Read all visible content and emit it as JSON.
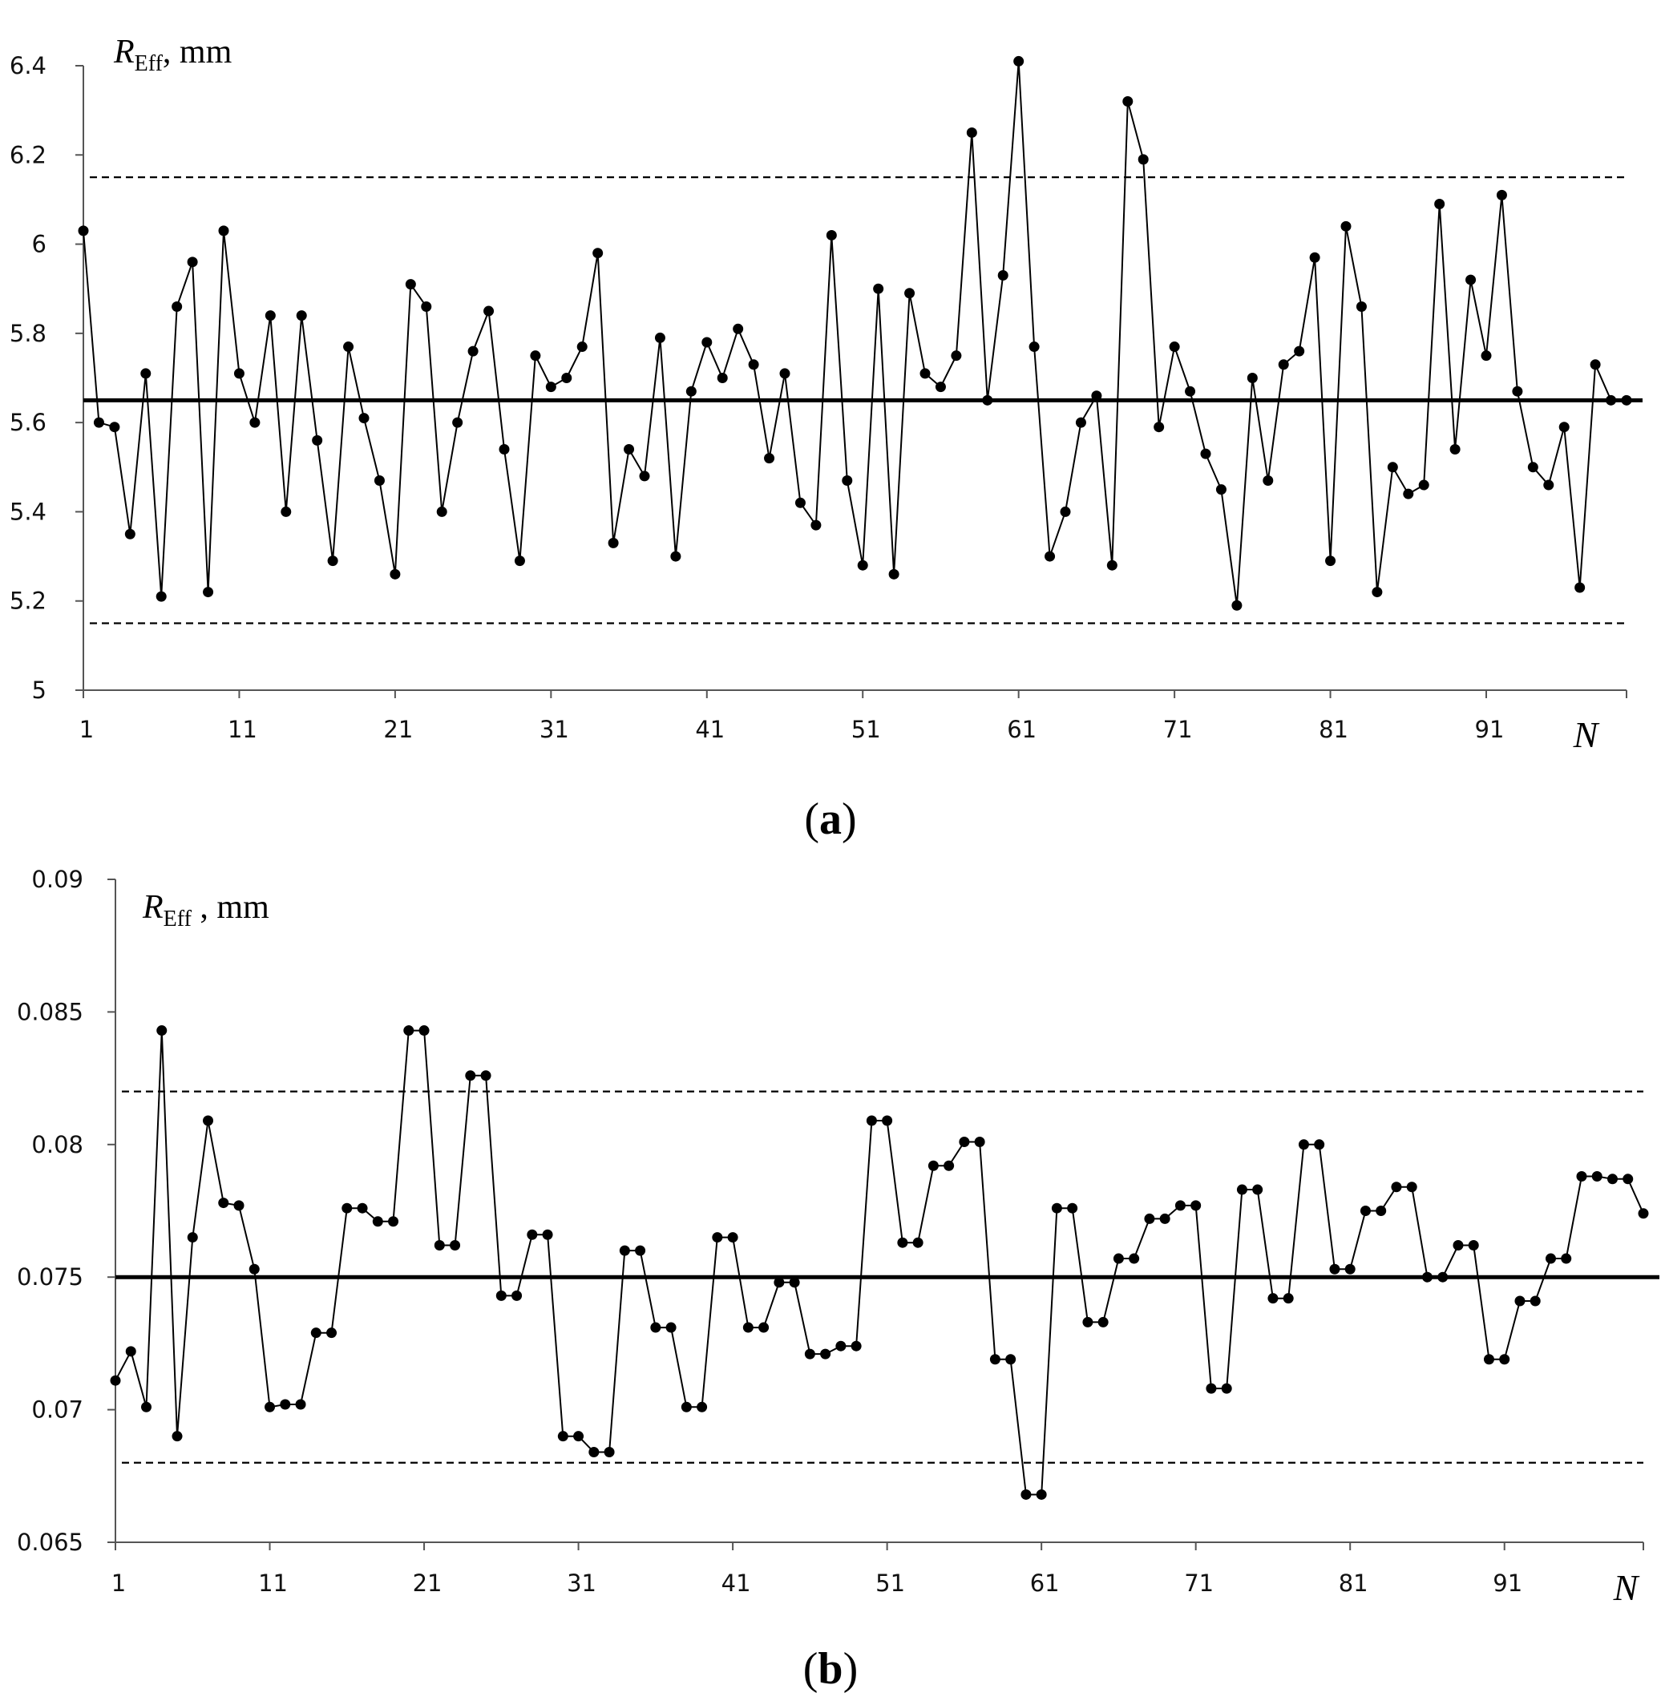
{
  "chart_data": [
    {
      "type": "line",
      "panel_label": "a",
      "ylabel_main": "R",
      "ylabel_sub": "Eff",
      "ylabel_unit": ", mm",
      "xlabel": "N",
      "ylim": [
        5,
        6.4
      ],
      "yticks": [
        5,
        5.2,
        5.4,
        5.6,
        5.8,
        6,
        6.2,
        6.4
      ],
      "ytick_labels": [
        "5",
        "5.2",
        "5.4",
        "5.6",
        "5.8",
        "6",
        "6.2",
        "6.4"
      ],
      "xlim": [
        1,
        100
      ],
      "xticks": [
        1,
        11,
        21,
        31,
        41,
        51,
        61,
        71,
        81,
        91
      ],
      "xtick_labels": [
        "1",
        "11",
        "21",
        "31",
        "41",
        "51",
        "61",
        "71",
        "81",
        "91"
      ],
      "mean_line": 5.65,
      "upper_limit": 6.15,
      "lower_limit": 5.15,
      "x": [
        1,
        2,
        3,
        4,
        5,
        6,
        7,
        8,
        9,
        10,
        11,
        12,
        13,
        14,
        15,
        16,
        17,
        18,
        19,
        20,
        21,
        22,
        23,
        24,
        25,
        26,
        27,
        28,
        29,
        30,
        31,
        32,
        33,
        34,
        35,
        36,
        37,
        38,
        39,
        40,
        41,
        42,
        43,
        44,
        45,
        46,
        47,
        48,
        49,
        50,
        51,
        52,
        53,
        54,
        55,
        56,
        57,
        58,
        59,
        60,
        61,
        62,
        63,
        64,
        65,
        66,
        67,
        68,
        69,
        70,
        71,
        72,
        73,
        74,
        75,
        76,
        77,
        78,
        79,
        80,
        81,
        82,
        83,
        84,
        85,
        86,
        87,
        88,
        89,
        90,
        91,
        92,
        93,
        94,
        95,
        96,
        97,
        98,
        99,
        100
      ],
      "values": [
        6.03,
        5.6,
        5.59,
        5.35,
        5.71,
        5.21,
        5.86,
        5.96,
        5.22,
        6.03,
        5.71,
        5.6,
        5.84,
        5.4,
        5.84,
        5.56,
        5.29,
        5.77,
        5.61,
        5.47,
        5.26,
        5.91,
        5.86,
        5.4,
        5.6,
        5.76,
        5.85,
        5.54,
        5.29,
        5.75,
        5.68,
        5.7,
        5.77,
        5.98,
        5.33,
        5.54,
        5.48,
        5.79,
        5.3,
        5.67,
        5.78,
        5.7,
        5.81,
        5.73,
        5.52,
        5.71,
        5.42,
        5.37,
        6.02,
        5.47,
        5.28,
        5.9,
        5.26,
        5.89,
        5.71,
        5.68,
        5.75,
        6.25,
        5.65,
        5.93,
        6.41,
        5.77,
        5.3,
        5.4,
        5.6,
        5.66,
        5.28,
        6.32,
        6.19,
        5.59,
        5.77,
        5.67,
        5.53,
        5.45,
        5.19,
        5.7,
        5.47,
        5.73,
        5.76,
        5.97,
        5.29,
        6.04,
        5.86,
        5.22,
        5.5,
        5.44,
        5.46,
        6.09,
        5.54,
        5.92,
        5.75,
        6.11,
        5.67,
        5.5,
        5.46,
        5.59,
        5.23,
        5.73,
        5.65,
        5.65
      ]
    },
    {
      "type": "line",
      "panel_label": "b",
      "ylabel_main": "R",
      "ylabel_sub": "Eff",
      "ylabel_unit": " , mm",
      "xlabel": "N",
      "ylim": [
        0.065,
        0.09
      ],
      "yticks": [
        0.065,
        0.07,
        0.075,
        0.08,
        0.085,
        0.09
      ],
      "ytick_labels": [
        "0.065",
        "0.07",
        "0.075",
        "0.08",
        "0.085",
        "0.09"
      ],
      "xlim": [
        1,
        100
      ],
      "xticks": [
        1,
        11,
        21,
        31,
        41,
        51,
        61,
        71,
        81,
        91
      ],
      "xtick_labels": [
        "1",
        "11",
        "21",
        "31",
        "41",
        "51",
        "61",
        "71",
        "81",
        "91"
      ],
      "mean_line": 0.075,
      "upper_limit": 0.082,
      "lower_limit": 0.068,
      "x": [
        1,
        2,
        3,
        4,
        5,
        6,
        7,
        8,
        9,
        10,
        11,
        12,
        13,
        14,
        15,
        16,
        17,
        18,
        19,
        20,
        21,
        22,
        23,
        24,
        25,
        26,
        27,
        28,
        29,
        30,
        31,
        32,
        33,
        34,
        35,
        36,
        37,
        38,
        39,
        40,
        41,
        42,
        43,
        44,
        45,
        46,
        47,
        48,
        49,
        50,
        51,
        52,
        53,
        54,
        55,
        56,
        57,
        58,
        59,
        60,
        61,
        62,
        63,
        64,
        65,
        66,
        67,
        68,
        69,
        70,
        71,
        72,
        73,
        74,
        75,
        76,
        77,
        78,
        79,
        80,
        81,
        82,
        83,
        84,
        85,
        86,
        87,
        88,
        89,
        90,
        91,
        92,
        93,
        94,
        95,
        96,
        97,
        98,
        99,
        100
      ],
      "values": [
        0.0711,
        0.0722,
        0.0701,
        0.0843,
        0.069,
        0.0765,
        0.0809,
        0.0778,
        0.0777,
        0.0753,
        0.0701,
        0.0702,
        0.0702,
        0.0729,
        0.0729,
        0.0776,
        0.0776,
        0.0771,
        0.0771,
        0.0843,
        0.0843,
        0.0762,
        0.0762,
        0.0826,
        0.0826,
        0.0743,
        0.0743,
        0.0766,
        0.0766,
        0.069,
        0.069,
        0.0684,
        0.0684,
        0.076,
        0.076,
        0.0731,
        0.0731,
        0.0701,
        0.0701,
        0.0765,
        0.0765,
        0.0731,
        0.0731,
        0.0748,
        0.0748,
        0.0721,
        0.0721,
        0.0724,
        0.0724,
        0.0809,
        0.0809,
        0.0763,
        0.0763,
        0.0792,
        0.0792,
        0.0801,
        0.0801,
        0.0719,
        0.0719,
        0.0668,
        0.0668,
        0.0776,
        0.0776,
        0.0733,
        0.0733,
        0.0757,
        0.0757,
        0.0772,
        0.0772,
        0.0777,
        0.0777,
        0.0708,
        0.0708,
        0.0783,
        0.0783,
        0.0742,
        0.0742,
        0.08,
        0.08,
        0.0753,
        0.0753,
        0.0775,
        0.0775,
        0.0784,
        0.0784,
        0.075,
        0.075,
        0.0762,
        0.0762,
        0.0719,
        0.0719,
        0.0741,
        0.0741,
        0.0757,
        0.0757,
        0.0788,
        0.0788,
        0.0787,
        0.0787,
        0.0774
      ]
    }
  ]
}
